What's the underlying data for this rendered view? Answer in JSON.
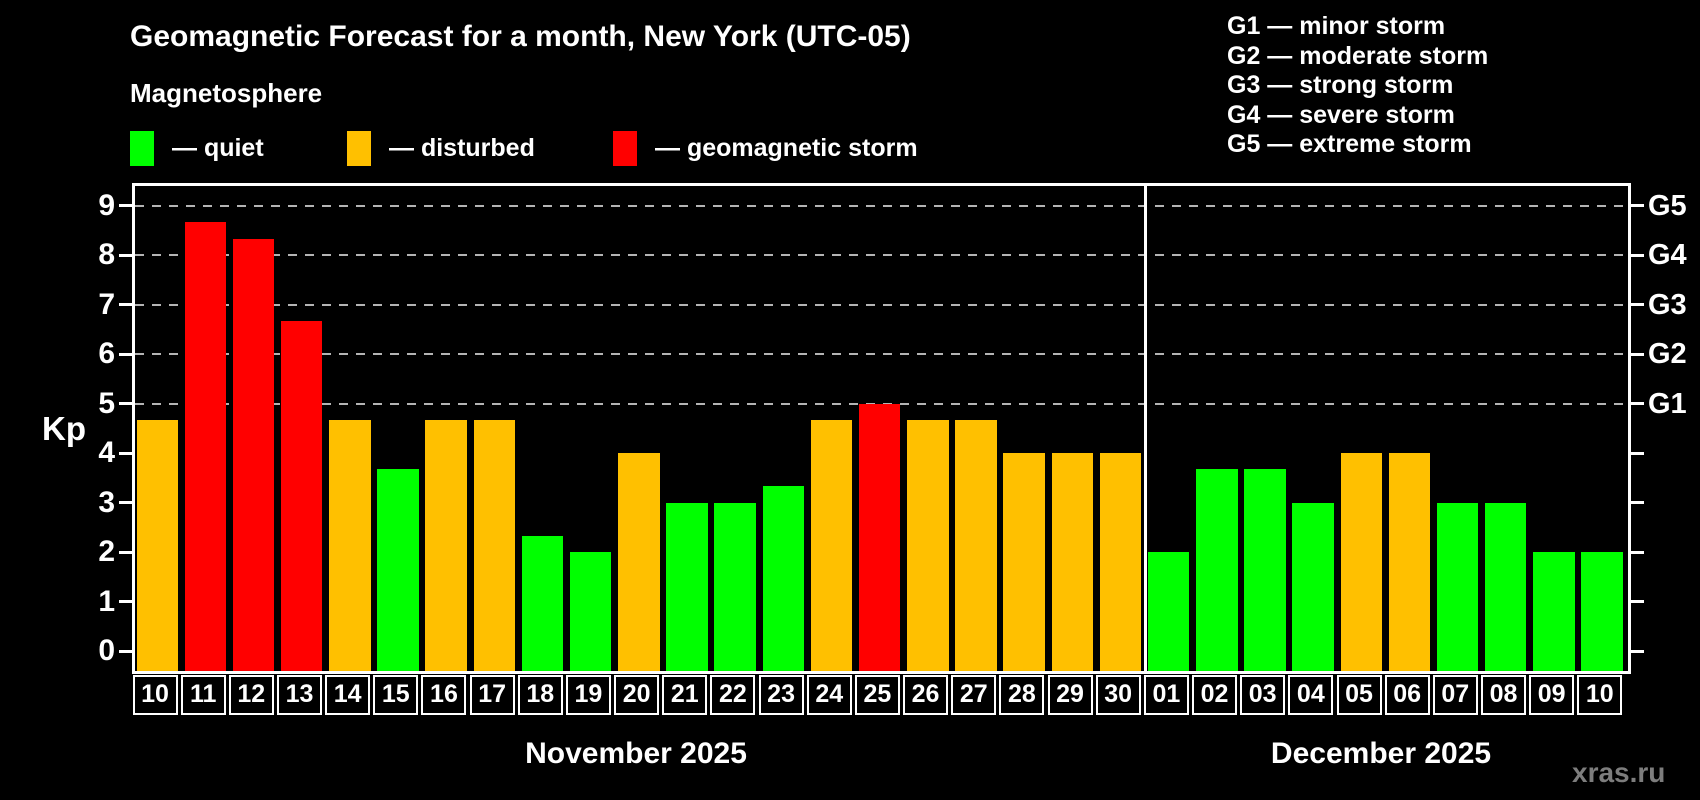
{
  "header": {
    "title": "Geomagnetic Forecast for a month, New York (UTC-05)",
    "subtitle": "Magnetosphere"
  },
  "legend": {
    "items": [
      {
        "label": "— quiet",
        "status": "quiet",
        "color": "#00ff00"
      },
      {
        "label": "— disturbed",
        "status": "disturbed",
        "color": "#ffc000"
      },
      {
        "label": "— geomagnetic storm",
        "status": "storm",
        "color": "#ff0000"
      }
    ]
  },
  "g_legend": [
    "G1 — minor storm",
    "G2 — moderate storm",
    "G3 — strong storm",
    "G4 — severe storm",
    "G5 — extreme storm"
  ],
  "watermark": "xras.ru",
  "chart_data": {
    "type": "bar",
    "title": "Geomagnetic Forecast for a month, New York (UTC-05)",
    "ylabel": "Kp",
    "ylim": [
      0,
      9.4
    ],
    "y_ticks": [
      0,
      1,
      2,
      3,
      4,
      5,
      6,
      7,
      8,
      9
    ],
    "grid": "horizontal dashed gridlines at Kp 5 through 9 (G-storm levels)",
    "legend_position": "top",
    "g_levels": [
      {
        "label": "G1",
        "kp": 5
      },
      {
        "label": "G2",
        "kp": 6
      },
      {
        "label": "G3",
        "kp": 7
      },
      {
        "label": "G4",
        "kp": 8
      },
      {
        "label": "G5",
        "kp": 9
      }
    ],
    "status_colors": {
      "quiet": "#00ff00",
      "disturbed": "#ffc000",
      "storm": "#ff0000"
    },
    "months": [
      {
        "label": "November 2025",
        "days": [
          "10",
          "11",
          "12",
          "13",
          "14",
          "15",
          "16",
          "17",
          "18",
          "19",
          "20",
          "21",
          "22",
          "23",
          "24",
          "25",
          "26",
          "27",
          "28",
          "29",
          "30"
        ],
        "values": [
          4.67,
          8.67,
          8.33,
          6.67,
          4.67,
          3.67,
          4.67,
          4.67,
          2.33,
          2.0,
          4.0,
          3.0,
          3.0,
          3.33,
          4.67,
          5.0,
          4.67,
          4.67,
          4.0,
          4.0,
          4.0
        ],
        "status": [
          "disturbed",
          "storm",
          "storm",
          "storm",
          "disturbed",
          "quiet",
          "disturbed",
          "disturbed",
          "quiet",
          "quiet",
          "disturbed",
          "quiet",
          "quiet",
          "quiet",
          "disturbed",
          "storm",
          "disturbed",
          "disturbed",
          "disturbed",
          "disturbed",
          "disturbed"
        ]
      },
      {
        "label": "December 2025",
        "days": [
          "01",
          "02",
          "03",
          "04",
          "05",
          "06",
          "07",
          "08",
          "09",
          "10"
        ],
        "values": [
          2.0,
          3.67,
          3.67,
          3.0,
          4.0,
          4.0,
          3.0,
          3.0,
          2.0,
          2.0
        ],
        "status": [
          "quiet",
          "quiet",
          "quiet",
          "quiet",
          "disturbed",
          "disturbed",
          "quiet",
          "quiet",
          "quiet",
          "quiet"
        ]
      }
    ]
  }
}
